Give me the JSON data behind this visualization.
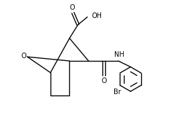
{
  "background": "#ffffff",
  "line_color": "#000000",
  "lw": 1.0,
  "fs": 7.0,
  "fig_width": 2.5,
  "fig_height": 1.98,
  "dpi": 100,
  "xlim": [
    0,
    10
  ],
  "ylim": [
    0,
    8
  ]
}
